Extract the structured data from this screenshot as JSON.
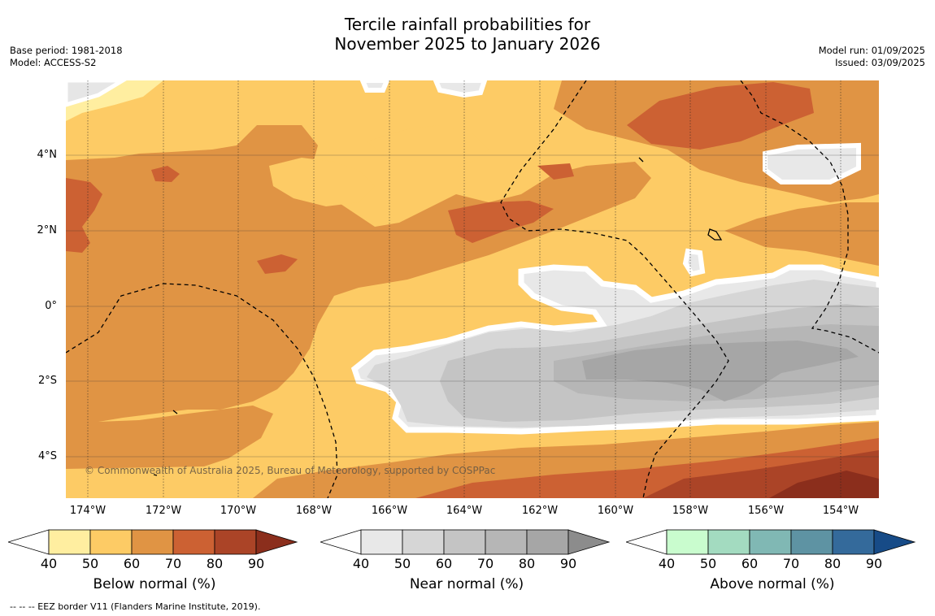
{
  "title_line1": "Tercile rainfall probabilities for",
  "title_line2": "November 2025 to January 2026",
  "base_period": "Base period: 1981-2018",
  "model": "Model: ACCESS-S2",
  "model_run": "Model run: 01/09/2025",
  "issued": "Issued: 03/09/2025",
  "lat_labels": [
    "4°N",
    "2°N",
    "0°",
    "2°S",
    "4°S"
  ],
  "lon_labels": [
    "174°W",
    "172°W",
    "170°W",
    "168°W",
    "166°W",
    "164°W",
    "162°W",
    "160°W",
    "158°W",
    "156°W",
    "154°W"
  ],
  "copyright": "© Commonwealth of Australia 2025, Bureau of Meteorology, supported by COSPPac",
  "colorbars": [
    {
      "label": "Below normal (%)",
      "ticks": [
        "40",
        "50",
        "60",
        "70",
        "80",
        "90"
      ],
      "colors": [
        "#ffffff",
        "#ffeea0",
        "#fdcb65",
        "#e09444",
        "#cc6133",
        "#ab4427",
        "#8b2e1c"
      ]
    },
    {
      "label": "Near normal (%)",
      "ticks": [
        "40",
        "50",
        "60",
        "70",
        "80",
        "90"
      ],
      "colors": [
        "#ffffff",
        "#e8e8e8",
        "#d6d6d6",
        "#c4c4c4",
        "#b6b6b6",
        "#a6a6a6",
        "#8c8c8c"
      ]
    },
    {
      "label": "Above normal (%)",
      "ticks": [
        "40",
        "50",
        "60",
        "70",
        "80",
        "90"
      ],
      "colors": [
        "#ffffff",
        "#c9fcce",
        "#a3dbc0",
        "#80b8b4",
        "#5e93a3",
        "#346a9b",
        "#174b87"
      ]
    }
  ],
  "footnote": "--  --  -- EEZ border V11 (Flanders Marine Institute, 2019)."
}
